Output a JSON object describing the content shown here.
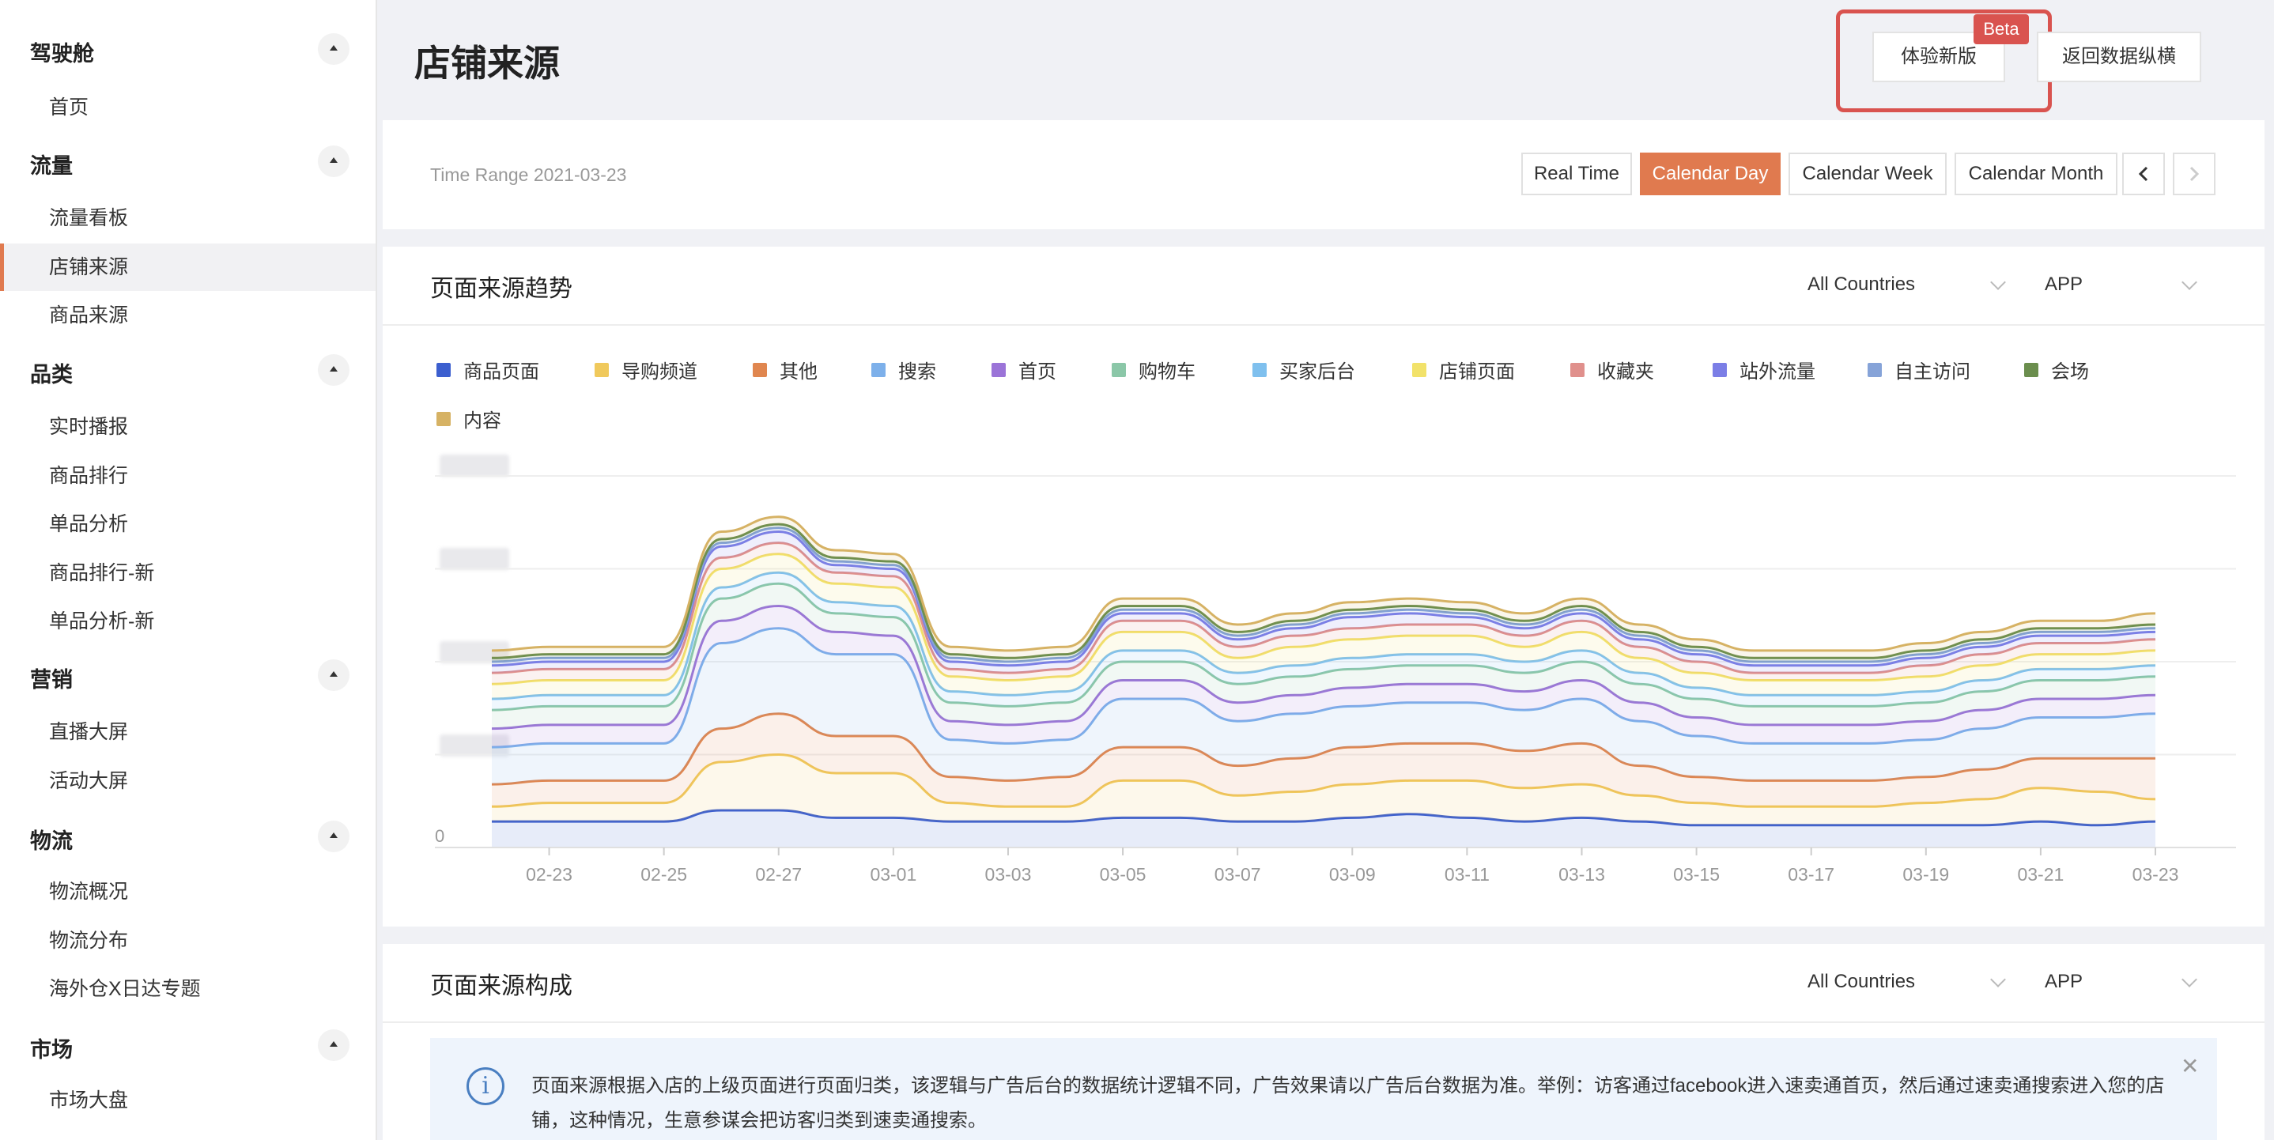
{
  "sidebar": {
    "groups": [
      {
        "title": "驾驶舱",
        "items": [
          "首页"
        ]
      },
      {
        "title": "流量",
        "items": [
          "流量看板",
          "店铺来源",
          "商品来源"
        ]
      },
      {
        "title": "品类",
        "items": [
          "实时播报",
          "商品排行",
          "单品分析",
          "商品排行-新",
          "单品分析-新"
        ]
      },
      {
        "title": "营销",
        "items": [
          "直播大屏",
          "活动大屏"
        ]
      },
      {
        "title": "物流",
        "items": [
          "物流概况",
          "物流分布",
          "海外仓X日达专题"
        ]
      },
      {
        "title": "市场",
        "items": [
          "市场大盘"
        ]
      }
    ],
    "active_item": "店铺来源"
  },
  "header": {
    "title": "店铺来源",
    "try_new_label": "体验新版",
    "beta_label": "Beta",
    "back_label": "返回数据纵横"
  },
  "time_bar": {
    "range_text": "Time Range 2021-03-23",
    "tabs": [
      "Real Time",
      "Calendar Day",
      "Calendar Week",
      "Calendar Month"
    ],
    "active_tab": "Calendar Day",
    "prev_icon": "chevron-left-icon",
    "next_icon": "chevron-right-icon"
  },
  "trend_panel": {
    "title": "页面来源趋势",
    "country_select": "All Countries",
    "platform_select": "APP",
    "y_zero": "0"
  },
  "composition_panel": {
    "title": "页面来源构成",
    "country_select": "All Countries",
    "platform_select": "APP",
    "notice_text": "页面来源根据入店的上级页面进行页面归类，该逻辑与广告后台的数据统计逻辑不同，广告效果请以广告后台数据为准。举例：访客通过facebook进入速卖通首页，然后通过速卖通搜索进入您的店铺，这种情况，生意参谋会把访客归类到速卖通搜索。",
    "close_icon": "close-icon",
    "info_icon": "info-icon"
  },
  "colors": {
    "accent": "#e07a4f",
    "highlight": "#d9534f"
  },
  "chart_data": {
    "type": "area",
    "stacked": true,
    "x": [
      "02-22",
      "02-23",
      "02-24",
      "02-25",
      "02-26",
      "02-27",
      "02-28",
      "03-01",
      "03-02",
      "03-03",
      "03-04",
      "03-05",
      "03-06",
      "03-07",
      "03-08",
      "03-09",
      "03-10",
      "03-11",
      "03-12",
      "03-13",
      "03-14",
      "03-15",
      "03-16",
      "03-17",
      "03-18",
      "03-19",
      "03-20",
      "03-21",
      "03-22",
      "03-23"
    ],
    "x_tick_labels": [
      "02-23",
      "02-25",
      "02-27",
      "03-01",
      "03-03",
      "03-05",
      "03-07",
      "03-09",
      "03-11",
      "03-13",
      "03-15",
      "03-17",
      "03-19",
      "03-21",
      "03-23"
    ],
    "y_tick_labels": [
      "0"
    ],
    "grid": true,
    "legend_position": "top-left",
    "series": [
      {
        "name": "商品页面",
        "color": "#3c5fcf",
        "values": [
          7,
          7,
          7,
          7,
          10,
          10,
          8,
          8,
          7,
          7,
          7,
          8,
          8,
          7,
          7,
          8,
          9,
          8,
          7,
          8,
          7,
          6,
          6,
          6,
          6,
          6,
          6,
          7,
          6,
          7
        ]
      },
      {
        "name": "导购频道",
        "color": "#f0c95c",
        "values": [
          4,
          5,
          5,
          5,
          13,
          15,
          12,
          12,
          5,
          4,
          4,
          10,
          10,
          7,
          8,
          9,
          9,
          10,
          9,
          9,
          7,
          6,
          5,
          5,
          5,
          6,
          7,
          9,
          9,
          6
        ]
      },
      {
        "name": "其他",
        "color": "#e0864f",
        "values": [
          6,
          6,
          6,
          6,
          9,
          11,
          10,
          10,
          7,
          7,
          8,
          9,
          9,
          8,
          9,
          10,
          10,
          10,
          10,
          11,
          8,
          7,
          7,
          7,
          7,
          7,
          8,
          8,
          9,
          11
        ]
      },
      {
        "name": "搜索",
        "color": "#7db0ea",
        "values": [
          10,
          10,
          10,
          10,
          23,
          23,
          22,
          22,
          10,
          10,
          10,
          13,
          13,
          12,
          12,
          11,
          11,
          11,
          11,
          12,
          12,
          11,
          10,
          10,
          10,
          10,
          11,
          11,
          11,
          12
        ]
      },
      {
        "name": "首页",
        "color": "#9b74d8",
        "values": [
          5,
          5,
          5,
          5,
          6,
          6,
          6,
          5,
          5,
          5,
          5,
          5,
          5,
          5,
          5,
          5,
          5,
          5,
          5,
          5,
          5,
          5,
          5,
          5,
          5,
          5,
          5,
          5,
          5,
          5
        ]
      },
      {
        "name": "购物车",
        "color": "#8bc7a8",
        "values": [
          5,
          5,
          5,
          5,
          6,
          6,
          5,
          5,
          5,
          5,
          5,
          5,
          5,
          5,
          5,
          5,
          5,
          5,
          5,
          5,
          5,
          5,
          5,
          5,
          5,
          5,
          5,
          5,
          5,
          5
        ]
      },
      {
        "name": "买家后台",
        "color": "#7fc0ee",
        "values": [
          3,
          3,
          3,
          3,
          3,
          3,
          3,
          3,
          3,
          3,
          3,
          3,
          3,
          3,
          3,
          3,
          3,
          3,
          3,
          3,
          3,
          3,
          3,
          3,
          3,
          3,
          3,
          3,
          3,
          3
        ]
      },
      {
        "name": "店铺页面",
        "color": "#f2e26a",
        "values": [
          4,
          4,
          4,
          4,
          5,
          5,
          5,
          5,
          4,
          4,
          4,
          5,
          5,
          4,
          5,
          5,
          5,
          5,
          4,
          5,
          4,
          4,
          4,
          4,
          4,
          4,
          4,
          4,
          4,
          4
        ]
      },
      {
        "name": "收藏夹",
        "color": "#e0908c",
        "values": [
          3,
          3,
          3,
          3,
          3,
          3,
          3,
          3,
          2,
          2,
          2,
          3,
          3,
          3,
          3,
          3,
          3,
          3,
          3,
          3,
          3,
          3,
          2,
          2,
          2,
          3,
          3,
          3,
          3,
          3
        ]
      },
      {
        "name": "站外流量",
        "color": "#7b7ee6",
        "values": [
          2,
          2,
          2,
          2,
          3,
          3,
          2,
          2,
          2,
          2,
          2,
          2,
          2,
          2,
          2,
          3,
          3,
          2,
          2,
          2,
          2,
          2,
          2,
          2,
          2,
          2,
          2,
          2,
          2,
          2
        ]
      },
      {
        "name": "自主访问",
        "color": "#86a3d8",
        "values": [
          1,
          1,
          1,
          1,
          1,
          1,
          1,
          1,
          1,
          1,
          1,
          1,
          1,
          1,
          1,
          1,
          1,
          1,
          1,
          1,
          1,
          1,
          1,
          1,
          1,
          1,
          1,
          1,
          1,
          1
        ]
      },
      {
        "name": "会场",
        "color": "#6b8e4e",
        "values": [
          1,
          1,
          1,
          1,
          1,
          1,
          1,
          1,
          1,
          1,
          1,
          1,
          1,
          1,
          1,
          1,
          1,
          1,
          1,
          1,
          1,
          1,
          1,
          1,
          1,
          1,
          1,
          1,
          1,
          1
        ]
      },
      {
        "name": "内容",
        "color": "#d6b264",
        "values": [
          2,
          2,
          2,
          2,
          2,
          2,
          2,
          2,
          2,
          2,
          2,
          2,
          2,
          2,
          2,
          2,
          2,
          2,
          2,
          2,
          2,
          2,
          2,
          2,
          2,
          2,
          2,
          2,
          2,
          3
        ]
      }
    ],
    "ylim": [
      0,
      100
    ]
  }
}
